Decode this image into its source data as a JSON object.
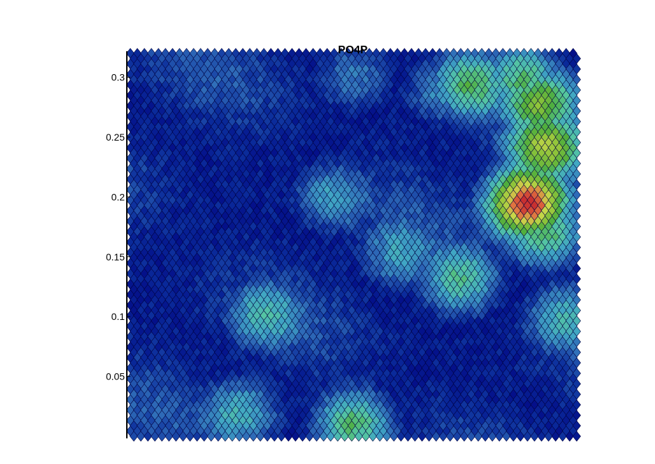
{
  "chart_data": {
    "type": "heatmap",
    "title": "PO4P",
    "xlabel": "",
    "ylabel": "",
    "ylim": [
      0,
      0.32
    ],
    "yticks": [
      0.05,
      0.1,
      0.15,
      0.2,
      0.25,
      0.3
    ],
    "ytick_labels": [
      "0.05",
      "0.1",
      "0.15",
      "0.2",
      "0.25",
      "0.3"
    ],
    "grid": false,
    "legend": "none",
    "marker": "diamond",
    "colormap": [
      "#00007f",
      "#0a2a9a",
      "#2f6cb8",
      "#40a6c4",
      "#55c6a0",
      "#4fae3c",
      "#8fc43a",
      "#c9d84a",
      "#e07040",
      "#c83030"
    ],
    "hotspots": [
      {
        "x_frac": 0.89,
        "y": 0.195,
        "value": 1.0
      },
      {
        "x_frac": 0.93,
        "y": 0.24,
        "value": 0.62
      },
      {
        "x_frac": 0.92,
        "y": 0.28,
        "value": 0.55
      },
      {
        "x_frac": 0.76,
        "y": 0.295,
        "value": 0.5
      },
      {
        "x_frac": 0.88,
        "y": 0.3,
        "value": 0.45
      },
      {
        "x_frac": 0.93,
        "y": 0.17,
        "value": 0.5
      },
      {
        "x_frac": 0.74,
        "y": 0.13,
        "value": 0.42
      },
      {
        "x_frac": 0.45,
        "y": 0.2,
        "value": 0.3
      },
      {
        "x_frac": 0.6,
        "y": 0.15,
        "value": 0.28
      },
      {
        "x_frac": 0.5,
        "y": 0.01,
        "value": 0.5
      },
      {
        "x_frac": 0.25,
        "y": 0.02,
        "value": 0.35
      },
      {
        "x_frac": 0.3,
        "y": 0.1,
        "value": 0.3
      },
      {
        "x_frac": 0.97,
        "y": 0.1,
        "value": 0.35
      },
      {
        "x_frac": 0.5,
        "y": 0.3,
        "value": 0.25
      },
      {
        "x_frac": 0.7,
        "y": 0.29,
        "value": 0.28
      }
    ]
  }
}
